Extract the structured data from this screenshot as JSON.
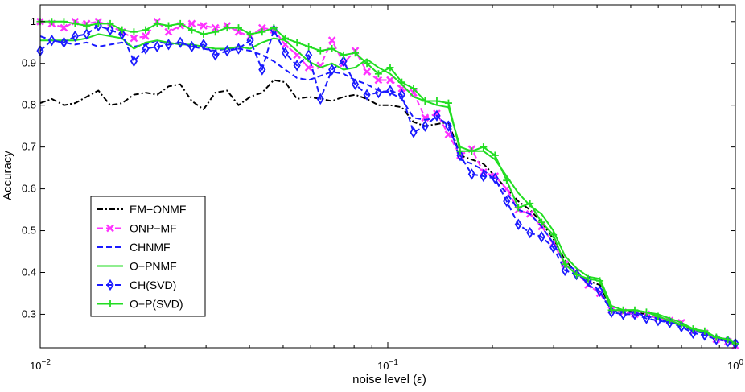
{
  "chart_data": {
    "type": "line",
    "title": "",
    "xlabel": "noise level (ε)",
    "ylabel": "Accuracy",
    "xscale": "log",
    "xlim": [
      0.01,
      1
    ],
    "ylim": [
      0.22,
      1.04
    ],
    "x_ticks": [
      {
        "value": 0.01,
        "base": "10",
        "exp": "−2"
      },
      {
        "value": 0.1,
        "base": "10",
        "exp": "−1"
      },
      {
        "value": 1,
        "base": "10",
        "exp": "0"
      }
    ],
    "y_ticks": [
      {
        "value": 0.3,
        "label": "0.3"
      },
      {
        "value": 0.4,
        "label": "0.4"
      },
      {
        "value": 0.5,
        "label": "0.5"
      },
      {
        "value": 0.6,
        "label": "0.6"
      },
      {
        "value": 0.7,
        "label": "0.7"
      },
      {
        "value": 0.8,
        "label": "0.8"
      },
      {
        "value": 0.9,
        "label": "0.9"
      },
      {
        "value": 1.0,
        "label": "1"
      }
    ],
    "grid": false,
    "legend_position": "lower-left",
    "x": [
      0.01,
      0.0108,
      0.0117,
      0.0126,
      0.0136,
      0.0147,
      0.0159,
      0.0172,
      0.0186,
      0.0201,
      0.0217,
      0.0234,
      0.0253,
      0.0273,
      0.0295,
      0.0319,
      0.0345,
      0.0372,
      0.0402,
      0.0435,
      0.047,
      0.0507,
      0.0548,
      0.0592,
      0.064,
      0.0691,
      0.0746,
      0.0806,
      0.0871,
      0.094,
      0.1016,
      0.1097,
      0.1186,
      0.128,
      0.1384,
      0.1495,
      0.1615,
      0.1744,
      0.1884,
      0.2035,
      0.2198,
      0.2375,
      0.2565,
      0.2771,
      0.2993,
      0.3233,
      0.3492,
      0.3772,
      0.4075,
      0.4402,
      0.4755,
      0.5136,
      0.5548,
      0.5993,
      0.6474,
      0.6994,
      0.7555,
      0.8161,
      0.8815,
      0.9523,
      1.0
    ],
    "series": [
      {
        "name": "EM−ONMF",
        "color": "#000000",
        "dash": "dashdot",
        "marker": "none",
        "values": [
          0.805,
          0.815,
          0.8,
          0.805,
          0.82,
          0.835,
          0.8,
          0.805,
          0.825,
          0.83,
          0.825,
          0.845,
          0.85,
          0.81,
          0.79,
          0.83,
          0.835,
          0.8,
          0.82,
          0.83,
          0.86,
          0.855,
          0.815,
          0.82,
          0.815,
          0.81,
          0.82,
          0.825,
          0.815,
          0.8,
          0.8,
          0.795,
          0.76,
          0.75,
          0.755,
          0.76,
          0.68,
          0.67,
          0.66,
          0.63,
          0.6,
          0.57,
          0.55,
          0.52,
          0.48,
          0.43,
          0.4,
          0.38,
          0.37,
          0.31,
          0.31,
          0.305,
          0.3,
          0.29,
          0.28,
          0.275,
          0.26,
          0.255,
          0.245,
          0.235,
          0.23
        ]
      },
      {
        "name": "ONP−MF",
        "color": "#ff33ff",
        "dash": "dashed",
        "marker": "x",
        "values": [
          1.0,
          0.995,
          0.985,
          1.0,
          0.995,
          1.0,
          0.99,
          0.975,
          0.96,
          0.965,
          1.0,
          0.975,
          0.99,
          0.995,
          0.99,
          0.985,
          0.99,
          0.975,
          0.965,
          0.985,
          0.98,
          0.945,
          0.92,
          0.89,
          0.895,
          0.955,
          0.9,
          0.93,
          0.88,
          0.86,
          0.86,
          0.84,
          0.83,
          0.77,
          0.78,
          0.73,
          0.68,
          0.695,
          0.64,
          0.63,
          0.6,
          0.55,
          0.54,
          0.51,
          0.47,
          0.42,
          0.4,
          0.37,
          0.35,
          0.31,
          0.305,
          0.3,
          0.3,
          0.29,
          0.285,
          0.28,
          0.26,
          0.255,
          0.24,
          0.235,
          0.225
        ]
      },
      {
        "name": "CHNMF",
        "color": "#1a1aff",
        "dash": "dashed",
        "marker": "none",
        "values": [
          0.965,
          0.955,
          0.95,
          0.945,
          0.95,
          0.94,
          0.945,
          0.95,
          0.94,
          0.945,
          0.955,
          0.945,
          0.95,
          0.94,
          0.935,
          0.93,
          0.935,
          0.935,
          0.93,
          0.92,
          0.905,
          0.885,
          0.865,
          0.86,
          0.87,
          0.88,
          0.875,
          0.86,
          0.85,
          0.835,
          0.83,
          0.815,
          0.77,
          0.765,
          0.77,
          0.755,
          0.67,
          0.66,
          0.645,
          0.62,
          0.59,
          0.55,
          0.54,
          0.51,
          0.47,
          0.42,
          0.405,
          0.37,
          0.355,
          0.31,
          0.305,
          0.305,
          0.295,
          0.29,
          0.28,
          0.275,
          0.26,
          0.255,
          0.245,
          0.235,
          0.23
        ]
      },
      {
        "name": "O−PNMF",
        "color": "#22dd22",
        "dash": "solid",
        "marker": "none",
        "values": [
          0.955,
          0.955,
          0.955,
          0.955,
          0.96,
          0.97,
          0.965,
          0.96,
          0.935,
          0.95,
          0.955,
          0.95,
          0.945,
          0.945,
          0.94,
          0.935,
          0.935,
          0.94,
          0.935,
          0.95,
          0.96,
          0.955,
          0.93,
          0.905,
          0.89,
          0.9,
          0.885,
          0.89,
          0.91,
          0.89,
          0.875,
          0.85,
          0.82,
          0.81,
          0.8,
          0.795,
          0.7,
          0.69,
          0.69,
          0.67,
          0.63,
          0.59,
          0.56,
          0.54,
          0.5,
          0.44,
          0.41,
          0.39,
          0.385,
          0.32,
          0.31,
          0.31,
          0.305,
          0.3,
          0.29,
          0.28,
          0.265,
          0.255,
          0.245,
          0.24,
          0.23
        ]
      },
      {
        "name": "CH(SVD)",
        "color": "#1a1aff",
        "dash": "dashed",
        "marker": "diamond",
        "values": [
          0.93,
          0.955,
          0.95,
          0.965,
          0.97,
          0.99,
          0.98,
          0.97,
          0.905,
          0.935,
          0.94,
          0.945,
          0.95,
          0.94,
          0.945,
          0.92,
          0.93,
          0.935,
          0.955,
          0.885,
          0.98,
          0.925,
          0.895,
          0.92,
          0.815,
          0.885,
          0.905,
          0.85,
          0.825,
          0.83,
          0.835,
          0.825,
          0.735,
          0.75,
          0.775,
          0.75,
          0.68,
          0.635,
          0.63,
          0.625,
          0.57,
          0.515,
          0.495,
          0.485,
          0.46,
          0.405,
          0.395,
          0.38,
          0.355,
          0.305,
          0.3,
          0.3,
          0.29,
          0.285,
          0.28,
          0.27,
          0.255,
          0.25,
          0.24,
          0.235,
          0.23
        ]
      },
      {
        "name": "O−P(SVD)",
        "color": "#22dd22",
        "dash": "solid",
        "marker": "plus",
        "values": [
          1.0,
          1.0,
          1.0,
          0.995,
          0.99,
          0.995,
          0.995,
          0.98,
          0.975,
          0.98,
          0.995,
          0.99,
          0.995,
          0.98,
          0.97,
          0.975,
          0.985,
          0.985,
          0.97,
          0.975,
          0.985,
          0.96,
          0.95,
          0.94,
          0.93,
          0.935,
          0.92,
          0.925,
          0.9,
          0.875,
          0.89,
          0.855,
          0.84,
          0.81,
          0.81,
          0.805,
          0.69,
          0.69,
          0.7,
          0.68,
          0.62,
          0.555,
          0.565,
          0.52,
          0.49,
          0.42,
          0.395,
          0.385,
          0.38,
          0.31,
          0.31,
          0.31,
          0.305,
          0.295,
          0.285,
          0.275,
          0.265,
          0.26,
          0.245,
          0.24,
          0.23
        ]
      }
    ]
  }
}
